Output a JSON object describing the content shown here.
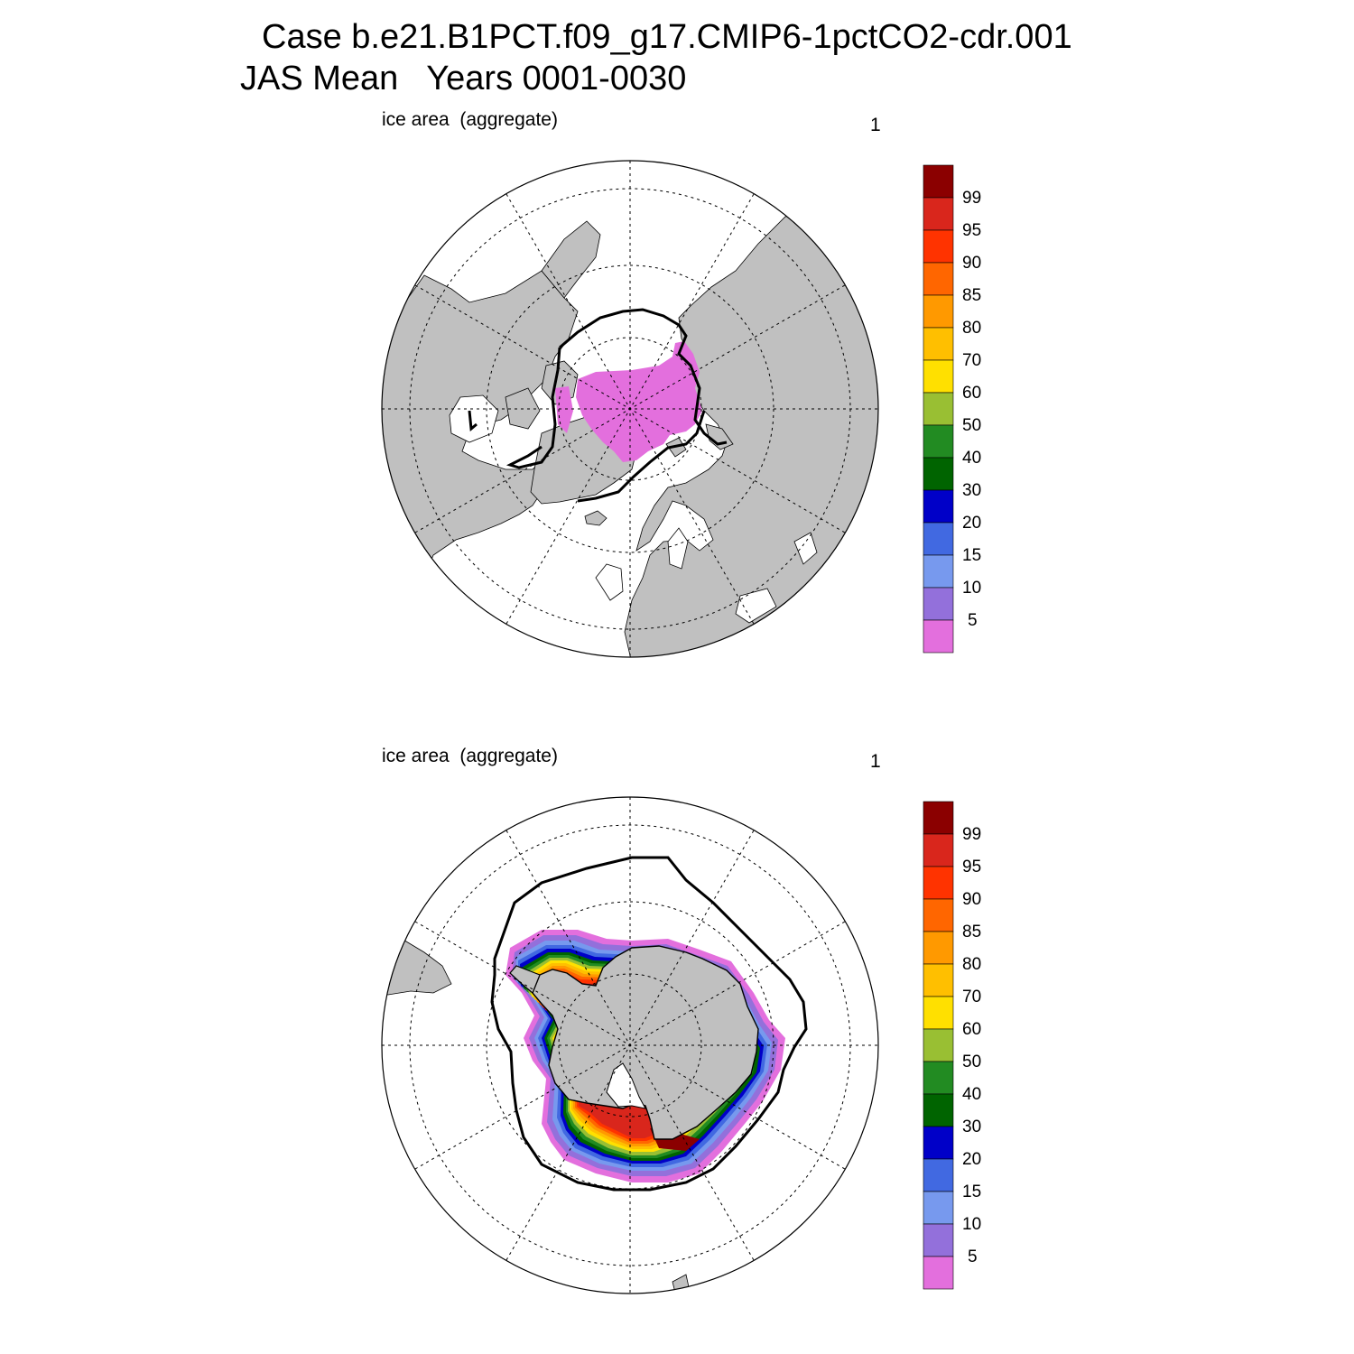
{
  "title": {
    "line1": "Case b.e21.B1PCT.f09_g17.CMIP6-1pctCO2-cdr.001",
    "line2": "JAS Mean   Years 0001-0030"
  },
  "panels": [
    {
      "id": "north",
      "hemisphere": "Northern",
      "left_label": "ice area  (aggregate)",
      "right_label": "1"
    },
    {
      "id": "south",
      "hemisphere": "Southern",
      "left_label": "ice area  (aggregate)",
      "right_label": "1"
    }
  ],
  "colorbar": {
    "labels": [
      "99",
      "95",
      "90",
      "85",
      "80",
      "70",
      "60",
      "50",
      "40",
      "30",
      "20",
      "15",
      "10",
      "5"
    ],
    "colors_top_to_bottom": [
      "#8b0000",
      "#d9261c",
      "#ff3300",
      "#ff6600",
      "#ff9900",
      "#ffbf00",
      "#ffe000",
      "#99bf33",
      "#228b22",
      "#006400",
      "#0000c8",
      "#4169e1",
      "#7799ee",
      "#9370db",
      "#e36fdd"
    ]
  },
  "colors": {
    "land": "#c0c0c0",
    "ocean": "#ffffff",
    "ice_edge_contour": "#000000"
  }
}
